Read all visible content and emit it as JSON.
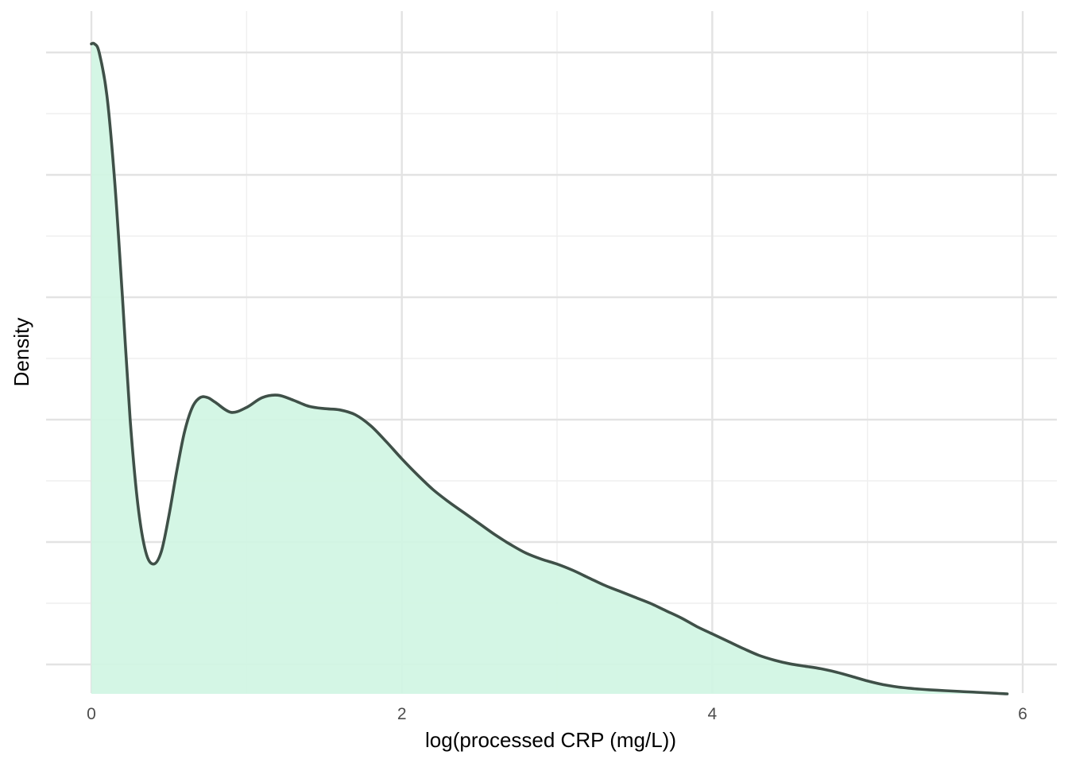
{
  "chart_data": {
    "type": "area",
    "title": "",
    "xlabel": "log(processed CRP (mg/L))",
    "ylabel": "Density",
    "xlim": [
      -0.3,
      6.2
    ],
    "ylim": [
      -0.02,
      0.6
    ],
    "x_major_ticks": [
      0,
      2,
      4,
      6
    ],
    "x_minor_ticks": [
      1,
      3,
      5
    ],
    "x_tick_labels": [
      "0",
      "2",
      "4",
      "6"
    ],
    "y_major_ticks": [
      0,
      0.1,
      0.2,
      0.3,
      0.4,
      0.5
    ],
    "y_minor_ticks": [
      0.05,
      0.15,
      0.25,
      0.35,
      0.45
    ],
    "y_tick_labels_shown": false,
    "grid": true,
    "legend": "none",
    "colors": {
      "fill": "#d0f5e3",
      "line": "#3f5048",
      "grid_major": "#e3e3e3",
      "grid_minor": "#efefef"
    },
    "series": [
      {
        "x": [
          0.0,
          0.02,
          0.05,
          0.1,
          0.15,
          0.2,
          0.25,
          0.3,
          0.35,
          0.4,
          0.45,
          0.5,
          0.55,
          0.6,
          0.65,
          0.7,
          0.75,
          0.8,
          0.9,
          1.0,
          1.1,
          1.2,
          1.3,
          1.4,
          1.5,
          1.6,
          1.7,
          1.8,
          1.9,
          2.0,
          2.1,
          2.2,
          2.3,
          2.4,
          2.5,
          2.6,
          2.7,
          2.8,
          2.9,
          3.0,
          3.1,
          3.2,
          3.3,
          3.4,
          3.5,
          3.6,
          3.7,
          3.8,
          3.9,
          4.0,
          4.1,
          4.2,
          4.3,
          4.4,
          4.5,
          4.6,
          4.7,
          4.8,
          4.9,
          5.0,
          5.1,
          5.2,
          5.3,
          5.4,
          5.5,
          5.6,
          5.7,
          5.8,
          5.9
        ],
        "values": [
          0.507,
          0.507,
          0.5,
          0.465,
          0.395,
          0.3,
          0.2,
          0.13,
          0.092,
          0.082,
          0.092,
          0.122,
          0.158,
          0.19,
          0.21,
          0.218,
          0.218,
          0.214,
          0.206,
          0.21,
          0.218,
          0.22,
          0.216,
          0.211,
          0.209,
          0.208,
          0.204,
          0.195,
          0.182,
          0.168,
          0.155,
          0.143,
          0.133,
          0.124,
          0.115,
          0.106,
          0.098,
          0.091,
          0.086,
          0.082,
          0.077,
          0.071,
          0.065,
          0.06,
          0.055,
          0.05,
          0.044,
          0.038,
          0.031,
          0.025,
          0.019,
          0.013,
          0.0075,
          0.0035,
          0.0005,
          -0.0015,
          -0.0035,
          -0.0063,
          -0.0098,
          -0.0135,
          -0.0165,
          -0.0185,
          -0.0198,
          -0.0207,
          -0.0214,
          -0.0221,
          -0.0227,
          -0.0234,
          -0.024
        ]
      }
    ]
  }
}
